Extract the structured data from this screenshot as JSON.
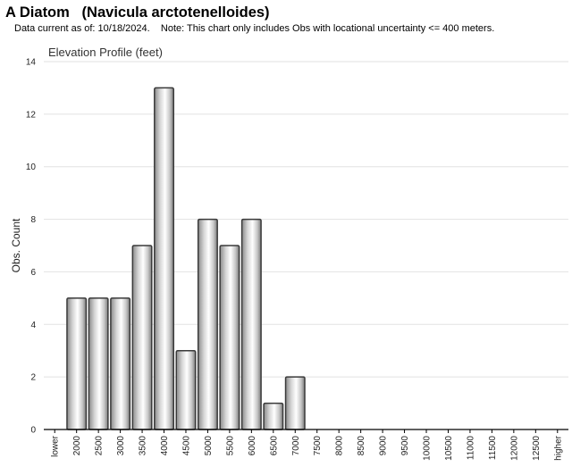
{
  "header": {
    "title": "A Diatom   (Navicula arctotenelloides)",
    "subtitle": "Data current as of: 10/18/2024.    Note: This chart only includes Obs with locational uncertainty <= 400 meters."
  },
  "chart_data": {
    "type": "bar",
    "title": "Elevation Profile (feet)",
    "xlabel": "",
    "ylabel": "Obs. Count",
    "ylim": [
      0,
      14
    ],
    "yticks": [
      "0",
      "2",
      "4",
      "6",
      "8",
      "10",
      "12",
      "14"
    ],
    "grid": true,
    "legend": "none",
    "bar_color": "#bdbdbd",
    "categories": [
      "lower",
      "2000",
      "2500",
      "3000",
      "3500",
      "4000",
      "4500",
      "5000",
      "5500",
      "6000",
      "6500",
      "7000",
      "7500",
      "8000",
      "8500",
      "9000",
      "9500",
      "10000",
      "10500",
      "11000",
      "11500",
      "12000",
      "12500",
      "higher"
    ],
    "values": [
      0,
      5,
      5,
      5,
      7,
      13,
      3,
      8,
      7,
      8,
      1,
      2,
      0,
      0,
      0,
      0,
      0,
      0,
      0,
      0,
      0,
      0,
      0,
      0
    ]
  }
}
